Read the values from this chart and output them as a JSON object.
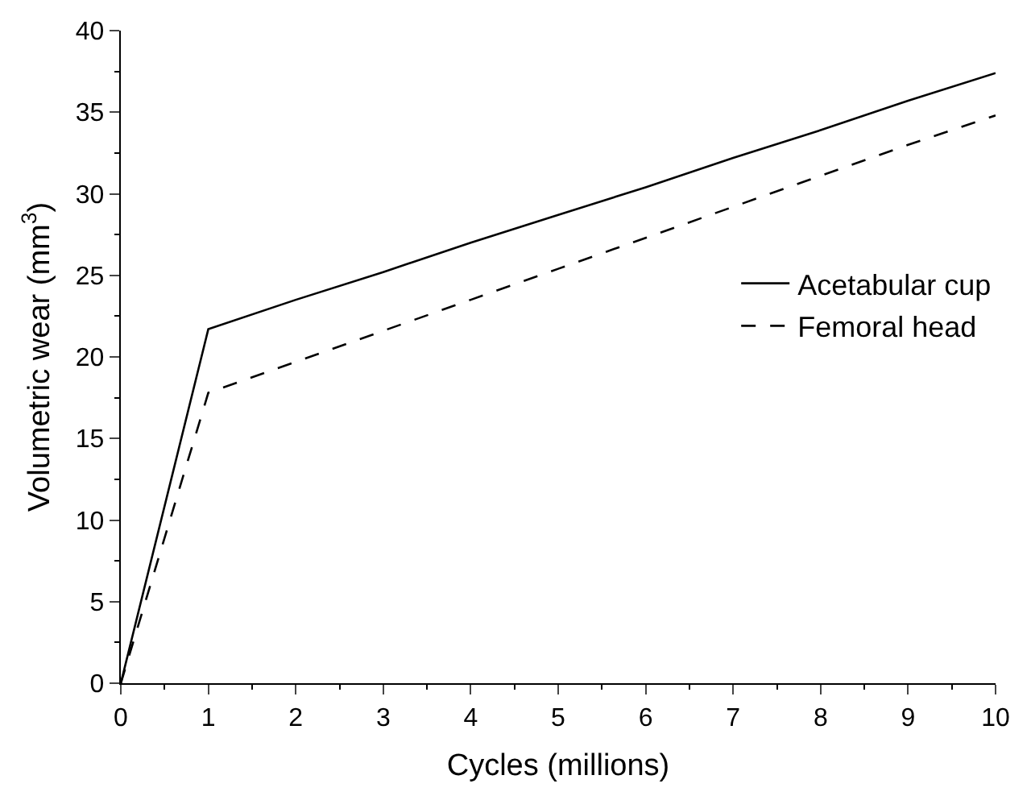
{
  "chart_data": {
    "type": "line",
    "xlabel": "Cycles (millions)",
    "ylabel": "Volumetric wear (mm$^{3}$)",
    "x": [
      0,
      1,
      2,
      3,
      4,
      5,
      6,
      7,
      8,
      9,
      10
    ],
    "series": [
      {
        "name": "Acetabular cup",
        "color": "#000000",
        "line_style": "solid",
        "values": [
          0,
          21.7,
          23.5,
          25.2,
          27.0,
          28.7,
          30.4,
          32.2,
          33.9,
          35.7,
          37.4
        ]
      },
      {
        "name": "Femoral head",
        "color": "#000000",
        "line_style": "dashed",
        "values": [
          0,
          17.8,
          19.7,
          21.6,
          23.5,
          25.4,
          27.3,
          29.2,
          31.1,
          33.0,
          34.8
        ]
      }
    ],
    "xlim": [
      0,
      10
    ],
    "ylim": [
      0,
      40
    ],
    "xticks": [
      0,
      {
        "value": 0.5,
        "label": null
      },
      1,
      {
        "value": 1.5,
        "label": null
      },
      2,
      {
        "value": 2.5,
        "label": null
      },
      3,
      {
        "value": 3.5,
        "label": null
      },
      4,
      {
        "value": 4.5,
        "label": null
      },
      5,
      {
        "value": 5.5,
        "label": null
      },
      6,
      {
        "value": 6.5,
        "label": null
      },
      7,
      {
        "value": 7.5,
        "label": null
      },
      8,
      {
        "value": 8.5,
        "label": null
      },
      9,
      {
        "value": 9.5,
        "label": null
      },
      10
    ],
    "yticks": [
      0,
      {
        "value": 2.5,
        "label": null
      },
      5,
      {
        "value": 7.5,
        "label": null
      },
      10,
      {
        "value": 12.5,
        "label": null
      },
      15,
      {
        "value": 17.5,
        "label": null
      },
      20,
      {
        "value": 22.5,
        "label": null
      },
      25,
      {
        "value": 27.5,
        "label": null
      },
      30,
      {
        "value": 32.5,
        "label": null
      },
      35,
      {
        "value": 37.5,
        "label": null
      },
      40
    ],
    "legend": "right",
    "marker": "none"
  }
}
